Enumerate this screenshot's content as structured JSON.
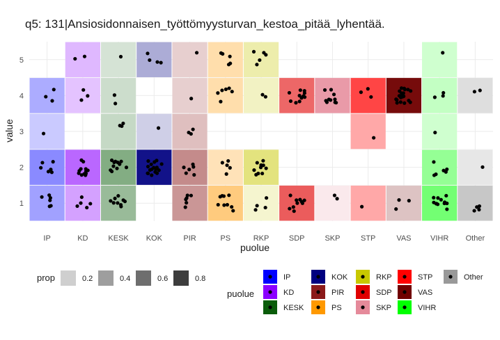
{
  "chart_data": {
    "type": "heatmap",
    "title": "q5: 131|Ansiosidonnaisen_työttömyysturvan_kestoa_pitää_lyhentää.",
    "xlabel": "puolue",
    "ylabel": "value",
    "categories": [
      "IP",
      "KD",
      "KESK",
      "KOK",
      "PIR",
      "PS",
      "RKP",
      "SDP",
      "SKP",
      "STP",
      "VAS",
      "VIHR",
      "Other"
    ],
    "y_ticks": [
      "1",
      "2",
      "3",
      "4",
      "5"
    ],
    "ylim": [
      0.5,
      5.5
    ],
    "grid": true,
    "party_colors": {
      "IP": "#0000ff",
      "KD": "#8b00ff",
      "KESK": "#0a5c0a",
      "KOK": "#000080",
      "PIR": "#8b1a1a",
      "PS": "#ff9900",
      "RKP": "#c8c800",
      "SDP": "#e00000",
      "SKP": "#e58a9a",
      "STP": "#ff0000",
      "VAS": "#700000",
      "VIHR": "#00ff00",
      "Other": "#999999"
    },
    "tiles": [
      {
        "party": "IP",
        "value": 1,
        "prop": 0.3
      },
      {
        "party": "IP",
        "value": 2,
        "prop": 0.4
      },
      {
        "party": "IP",
        "value": 3,
        "prop": 0.12
      },
      {
        "party": "IP",
        "value": 4,
        "prop": 0.25
      },
      {
        "party": "KD",
        "value": 1,
        "prop": 0.3
      },
      {
        "party": "KD",
        "value": 2,
        "prop": 0.55
      },
      {
        "party": "KD",
        "value": 4,
        "prop": 0.15
      },
      {
        "party": "KD",
        "value": 5,
        "prop": 0.2
      },
      {
        "party": "KESK",
        "value": 1,
        "prop": 0.35
      },
      {
        "party": "KESK",
        "value": 2,
        "prop": 0.45
      },
      {
        "party": "KESK",
        "value": 3,
        "prop": 0.15
      },
      {
        "party": "KESK",
        "value": 4,
        "prop": 0.12
      },
      {
        "party": "KESK",
        "value": 5,
        "prop": 0.08
      },
      {
        "party": "KOK",
        "value": 2,
        "prop": 0.92
      },
      {
        "party": "KOK",
        "value": 3,
        "prop": 0.1
      },
      {
        "party": "KOK",
        "value": 5,
        "prop": 0.25
      },
      {
        "party": "PIR",
        "value": 1,
        "prop": 0.4
      },
      {
        "party": "PIR",
        "value": 2,
        "prop": 0.45
      },
      {
        "party": "PIR",
        "value": 3,
        "prop": 0.2
      },
      {
        "party": "PIR",
        "value": 4,
        "prop": 0.12
      },
      {
        "party": "PIR",
        "value": 5,
        "prop": 0.12
      },
      {
        "party": "PS",
        "value": 1,
        "prop": 0.45
      },
      {
        "party": "PS",
        "value": 2,
        "prop": 0.2
      },
      {
        "party": "PS",
        "value": 4,
        "prop": 0.25
      },
      {
        "party": "PS",
        "value": 5,
        "prop": 0.25
      },
      {
        "party": "RKP",
        "value": 1,
        "prop": 0.1
      },
      {
        "party": "RKP",
        "value": 2,
        "prop": 0.45
      },
      {
        "party": "RKP",
        "value": 4,
        "prop": 0.15
      },
      {
        "party": "RKP",
        "value": 5,
        "prop": 0.25
      },
      {
        "party": "SDP",
        "value": 1,
        "prop": 0.6
      },
      {
        "party": "SDP",
        "value": 4,
        "prop": 0.55
      },
      {
        "party": "SKP",
        "value": 1,
        "prop": 0.1
      },
      {
        "party": "SKP",
        "value": 4,
        "prop": 0.85
      },
      {
        "party": "STP",
        "value": 1,
        "prop": 0.27
      },
      {
        "party": "STP",
        "value": 3,
        "prop": 0.27
      },
      {
        "party": "STP",
        "value": 4,
        "prop": 0.7
      },
      {
        "party": "VAS",
        "value": 1,
        "prop": 0.15
      },
      {
        "party": "VAS",
        "value": 4,
        "prop": 0.95
      },
      {
        "party": "VIHR",
        "value": 1,
        "prop": 0.5
      },
      {
        "party": "VIHR",
        "value": 2,
        "prop": 0.35
      },
      {
        "party": "VIHR",
        "value": 3,
        "prop": 0.1
      },
      {
        "party": "VIHR",
        "value": 4,
        "prop": 0.15
      },
      {
        "party": "VIHR",
        "value": 5,
        "prop": 0.1
      },
      {
        "party": "Other",
        "value": 1,
        "prop": 0.5
      },
      {
        "party": "Other",
        "value": 2,
        "prop": 0.15
      },
      {
        "party": "Other",
        "value": 4,
        "prop": 0.25
      }
    ],
    "points": [
      {
        "party": "IP",
        "value": 1,
        "n": 6
      },
      {
        "party": "IP",
        "value": 2,
        "n": 6
      },
      {
        "party": "IP",
        "value": 3,
        "n": 1
      },
      {
        "party": "IP",
        "value": 4,
        "n": 3
      },
      {
        "party": "KD",
        "value": 1,
        "n": 5
      },
      {
        "party": "KD",
        "value": 2,
        "n": 12
      },
      {
        "party": "KD",
        "value": 4,
        "n": 3
      },
      {
        "party": "KD",
        "value": 5,
        "n": 2
      },
      {
        "party": "KESK",
        "value": 1,
        "n": 9
      },
      {
        "party": "KESK",
        "value": 2,
        "n": 11
      },
      {
        "party": "KESK",
        "value": 3,
        "n": 3
      },
      {
        "party": "KESK",
        "value": 4,
        "n": 2
      },
      {
        "party": "KESK",
        "value": 5,
        "n": 1
      },
      {
        "party": "KOK",
        "value": 2,
        "n": 18
      },
      {
        "party": "KOK",
        "value": 3,
        "n": 1
      },
      {
        "party": "KOK",
        "value": 5,
        "n": 4
      },
      {
        "party": "PIR",
        "value": 1,
        "n": 6
      },
      {
        "party": "PIR",
        "value": 2,
        "n": 6
      },
      {
        "party": "PIR",
        "value": 3,
        "n": 3
      },
      {
        "party": "PIR",
        "value": 4,
        "n": 1
      },
      {
        "party": "PIR",
        "value": 5,
        "n": 1
      },
      {
        "party": "PS",
        "value": 1,
        "n": 9
      },
      {
        "party": "PS",
        "value": 2,
        "n": 5
      },
      {
        "party": "PS",
        "value": 4,
        "n": 6
      },
      {
        "party": "PS",
        "value": 5,
        "n": 5
      },
      {
        "party": "RKP",
        "value": 1,
        "n": 4
      },
      {
        "party": "RKP",
        "value": 2,
        "n": 10
      },
      {
        "party": "RKP",
        "value": 4,
        "n": 2
      },
      {
        "party": "RKP",
        "value": 5,
        "n": 5
      },
      {
        "party": "SDP",
        "value": 1,
        "n": 10
      },
      {
        "party": "SDP",
        "value": 4,
        "n": 12
      },
      {
        "party": "SKP",
        "value": 1,
        "n": 2
      },
      {
        "party": "SKP",
        "value": 4,
        "n": 10
      },
      {
        "party": "STP",
        "value": 1,
        "n": 1
      },
      {
        "party": "STP",
        "value": 3,
        "n": 1
      },
      {
        "party": "STP",
        "value": 4,
        "n": 3
      },
      {
        "party": "VAS",
        "value": 1,
        "n": 3
      },
      {
        "party": "VAS",
        "value": 4,
        "n": 20
      },
      {
        "party": "VIHR",
        "value": 1,
        "n": 12
      },
      {
        "party": "VIHR",
        "value": 2,
        "n": 6
      },
      {
        "party": "VIHR",
        "value": 3,
        "n": 1
      },
      {
        "party": "VIHR",
        "value": 4,
        "n": 3
      },
      {
        "party": "VIHR",
        "value": 5,
        "n": 1
      },
      {
        "party": "Other",
        "value": 1,
        "n": 4
      },
      {
        "party": "Other",
        "value": 2,
        "n": 1
      },
      {
        "party": "Other",
        "value": 4,
        "n": 2
      }
    ],
    "legend_prop": {
      "title": "prop",
      "items": [
        {
          "label": "0.2",
          "prop": 0.2
        },
        {
          "label": "0.4",
          "prop": 0.4
        },
        {
          "label": "0.6",
          "prop": 0.6
        },
        {
          "label": "0.8",
          "prop": 0.8
        }
      ]
    },
    "legend_party": {
      "title": "puolue",
      "columns": [
        [
          "IP",
          "KD",
          "KESK"
        ],
        [
          "KOK",
          "PIR",
          "PS"
        ],
        [
          "RKP",
          "SDP",
          "SKP"
        ],
        [
          "STP",
          "VAS",
          "VIHR"
        ],
        [
          "Other"
        ]
      ]
    },
    "legend_placement": "bottom"
  }
}
